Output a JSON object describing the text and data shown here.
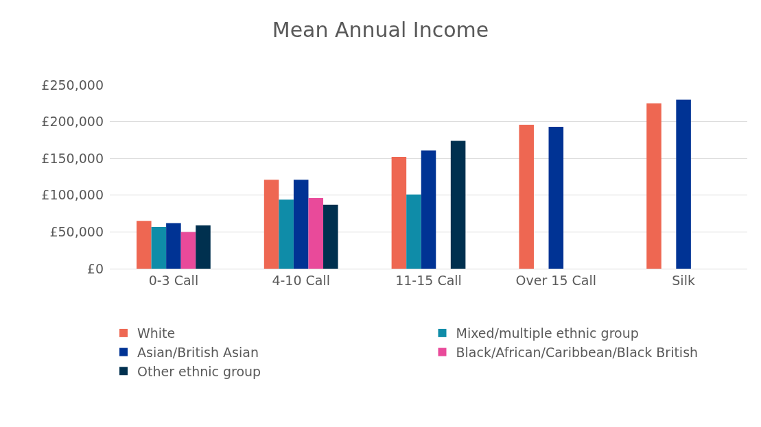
{
  "chart_data": {
    "type": "bar",
    "title": "Mean Annual Income",
    "categories": [
      "0-3 Call",
      "4-10 Call",
      "11-15 Call",
      "Over 15 Call",
      "Silk"
    ],
    "series": [
      {
        "name": "White",
        "color": "#ee6752",
        "values": [
          65000,
          121000,
          152000,
          196000,
          225000
        ]
      },
      {
        "name": "Mixed/multiple ethnic group",
        "color": "#0f8ca8",
        "values": [
          57000,
          94000,
          101000,
          null,
          null
        ]
      },
      {
        "name": "Asian/British Asian",
        "color": "#003394",
        "values": [
          62000,
          121000,
          161000,
          193000,
          230000
        ]
      },
      {
        "name": "Black/African/Caribbean/Black British",
        "color": "#e94a9a",
        "values": [
          50000,
          96000,
          null,
          null,
          null
        ]
      },
      {
        "name": "Other ethnic group",
        "color": "#00304f",
        "values": [
          59000,
          87000,
          174000,
          null,
          null
        ]
      }
    ],
    "ylim": [
      0,
      250000
    ],
    "yticks": [
      {
        "value": 0,
        "label": "£0"
      },
      {
        "value": 50000,
        "label": "£50,000"
      },
      {
        "value": 100000,
        "label": "£100,000"
      },
      {
        "value": 150000,
        "label": "£150,000"
      },
      {
        "value": 200000,
        "label": "£200,000"
      },
      {
        "value": 250000,
        "label": "£250,000"
      }
    ],
    "grid": "y",
    "legend": "bottom"
  }
}
